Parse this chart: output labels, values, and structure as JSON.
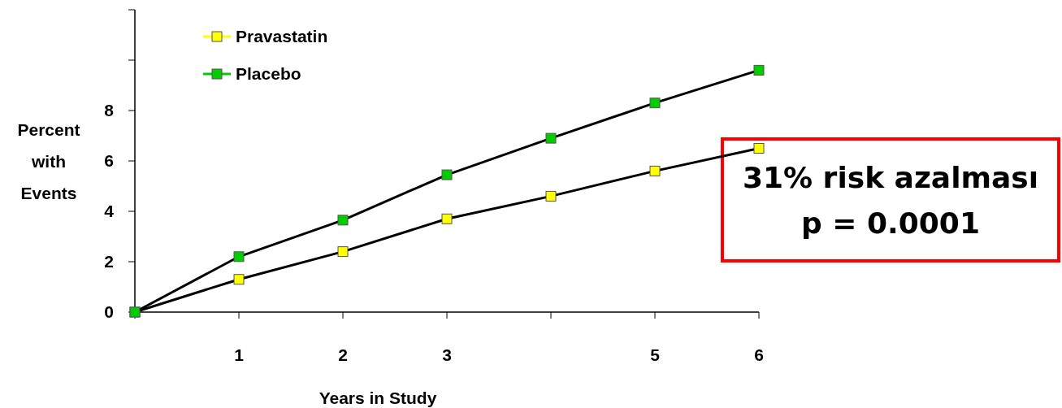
{
  "chart_data": {
    "type": "line",
    "xlabel": "Years in Study",
    "ylabel": "Percent with Events",
    "x": [
      0,
      1,
      2,
      3,
      4,
      5,
      6
    ],
    "series": [
      {
        "name": "Pravastatin",
        "color": "#ffff00",
        "values": [
          0,
          1.3,
          2.4,
          3.7,
          4.6,
          5.6,
          6.5
        ]
      },
      {
        "name": "Placebo",
        "color": "#00cc00",
        "values": [
          0,
          2.2,
          3.65,
          5.45,
          6.9,
          8.3,
          9.6
        ]
      }
    ],
    "xlim": [
      0,
      6
    ],
    "xticks": [
      {
        "value": 0,
        "label": null
      },
      1,
      2,
      3,
      {
        "value": 4,
        "label": null
      },
      5,
      6
    ],
    "ylim": [
      0,
      12
    ],
    "yticks": [
      0,
      2,
      4,
      6,
      8,
      {
        "value": 10,
        "label": null
      },
      {
        "value": 12,
        "label": null
      }
    ],
    "marker": "square",
    "line_style": "solid",
    "grid": false,
    "legend": "top left",
    "annotations": [
      "31% risk azalması\np = 0.0001"
    ]
  }
}
